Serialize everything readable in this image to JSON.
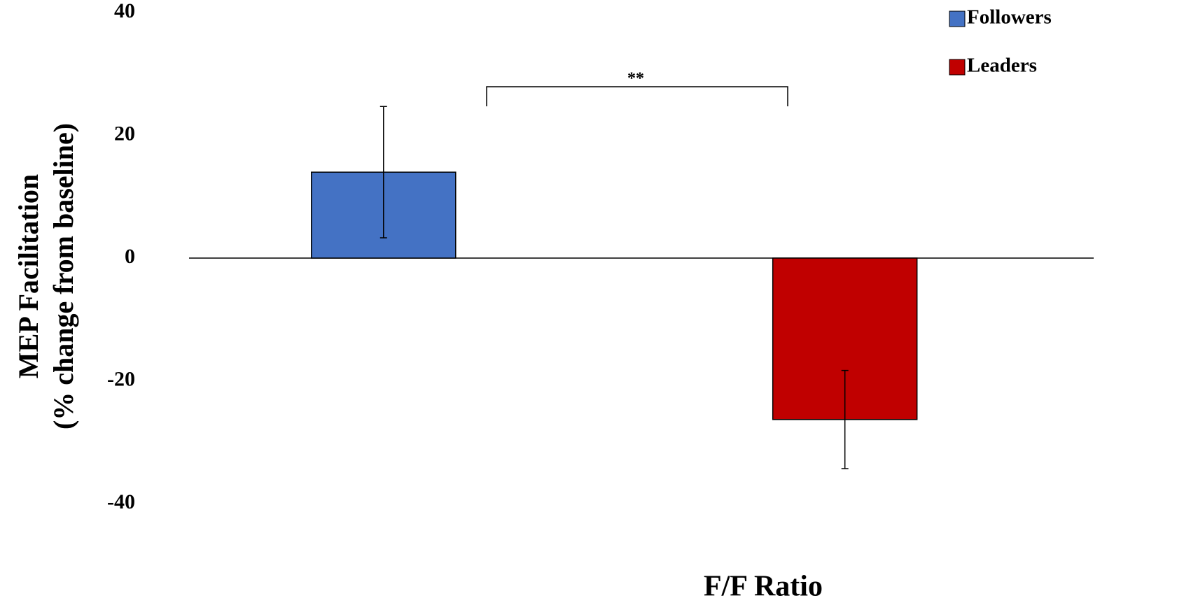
{
  "chart_data": {
    "type": "bar",
    "ylabel": [
      "MEP Facilitation",
      "(% change from baseline)"
    ],
    "xlabel": "F/F Ratio",
    "annotation": "**",
    "categories": [
      null
    ],
    "series": [
      {
        "name": "Followers",
        "color": "#4472c4",
        "values": [
          14
        ],
        "errors": [
          10.7
        ]
      },
      {
        "name": "Leaders",
        "color": "#c00000",
        "values": [
          -26.3
        ],
        "errors": [
          8
        ]
      }
    ],
    "ylim": [
      -40,
      40
    ],
    "yticks": [
      -40,
      -20,
      0,
      20,
      40
    ],
    "grid": false,
    "legend": "top-right"
  }
}
